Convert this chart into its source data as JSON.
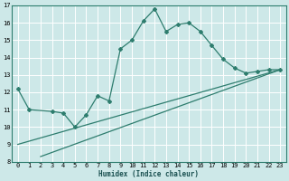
{
  "xlabel": "Humidex (Indice chaleur)",
  "bg_color": "#cde8e8",
  "grid_color": "#b0d0d0",
  "line_color": "#2e7d6e",
  "xlim": [
    -0.5,
    23.5
  ],
  "ylim": [
    8,
    17
  ],
  "xticks": [
    0,
    1,
    2,
    3,
    4,
    5,
    6,
    7,
    8,
    9,
    10,
    11,
    12,
    13,
    14,
    15,
    16,
    17,
    18,
    19,
    20,
    21,
    22,
    23
  ],
  "yticks": [
    8,
    9,
    10,
    11,
    12,
    13,
    14,
    15,
    16,
    17
  ],
  "line1_x": [
    0,
    1,
    3,
    4,
    5,
    6,
    7,
    8,
    9,
    10,
    11,
    12,
    13,
    14,
    15,
    16,
    17,
    18,
    19,
    20,
    21,
    22,
    23
  ],
  "line1_y": [
    12.2,
    11.0,
    10.9,
    10.8,
    10.0,
    10.7,
    11.8,
    11.5,
    14.5,
    15.0,
    16.1,
    16.8,
    15.5,
    15.9,
    16.0,
    15.5,
    14.7,
    13.9,
    13.4,
    13.1,
    13.2,
    13.3,
    13.3
  ],
  "line2_x": [
    2,
    23
  ],
  "line2_y": [
    8.3,
    13.3
  ],
  "line3_x": [
    0,
    23
  ],
  "line3_y": [
    9.0,
    13.3
  ],
  "tick_fontsize": 5.0,
  "xlabel_fontsize": 5.5
}
